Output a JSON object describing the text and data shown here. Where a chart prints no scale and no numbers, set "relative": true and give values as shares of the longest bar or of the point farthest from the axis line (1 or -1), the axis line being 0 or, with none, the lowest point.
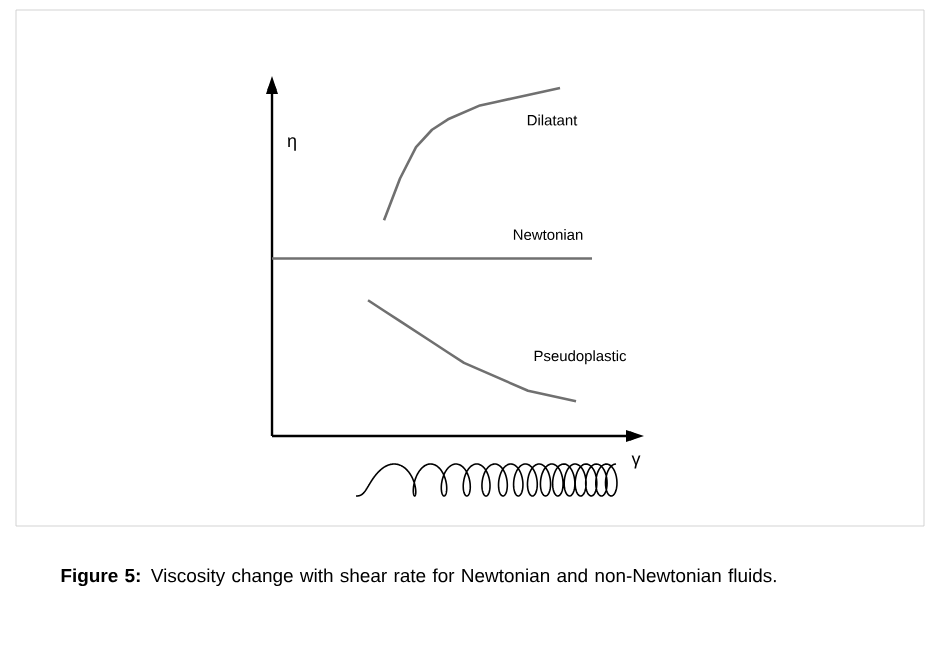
{
  "chart_data": {
    "type": "line",
    "relative": true,
    "xlabel": "γ",
    "ylabel": "η",
    "categories": [
      null,
      null,
      null,
      null,
      null,
      null,
      null,
      null,
      null,
      null,
      null,
      null,
      null,
      null,
      null,
      null,
      null,
      null,
      null,
      null,
      null
    ],
    "series": [
      {
        "name": "Dilatant",
        "color": "#707070",
        "values": [
          null,
          null,
          null,
          null,
          null,
          null,
          null,
          0.62,
          0.74,
          0.83,
          0.88,
          0.91,
          0.93,
          0.95,
          0.96,
          0.97,
          0.98,
          0.99,
          1.0,
          null,
          null
        ]
      },
      {
        "name": "Newtonian",
        "color": "#707070",
        "values": [
          0.51,
          0.51,
          0.51,
          0.51,
          0.51,
          0.51,
          0.51,
          0.51,
          0.51,
          0.51,
          0.51,
          0.51,
          0.51,
          0.51,
          0.51,
          0.51,
          0.51,
          0.51,
          0.51,
          0.51,
          0.51
        ]
      },
      {
        "name": "Pseudoplastic",
        "color": "#707070",
        "values": [
          null,
          null,
          null,
          null,
          null,
          null,
          0.39,
          0.36,
          0.33,
          0.3,
          0.27,
          0.24,
          0.21,
          0.19,
          0.17,
          0.15,
          0.13,
          0.12,
          0.11,
          0.1,
          null
        ]
      }
    ],
    "annotations": [
      "**Figure 5:** Viscosity change with shear rate for Newtonian and non-Newtonian fluids."
    ]
  }
}
